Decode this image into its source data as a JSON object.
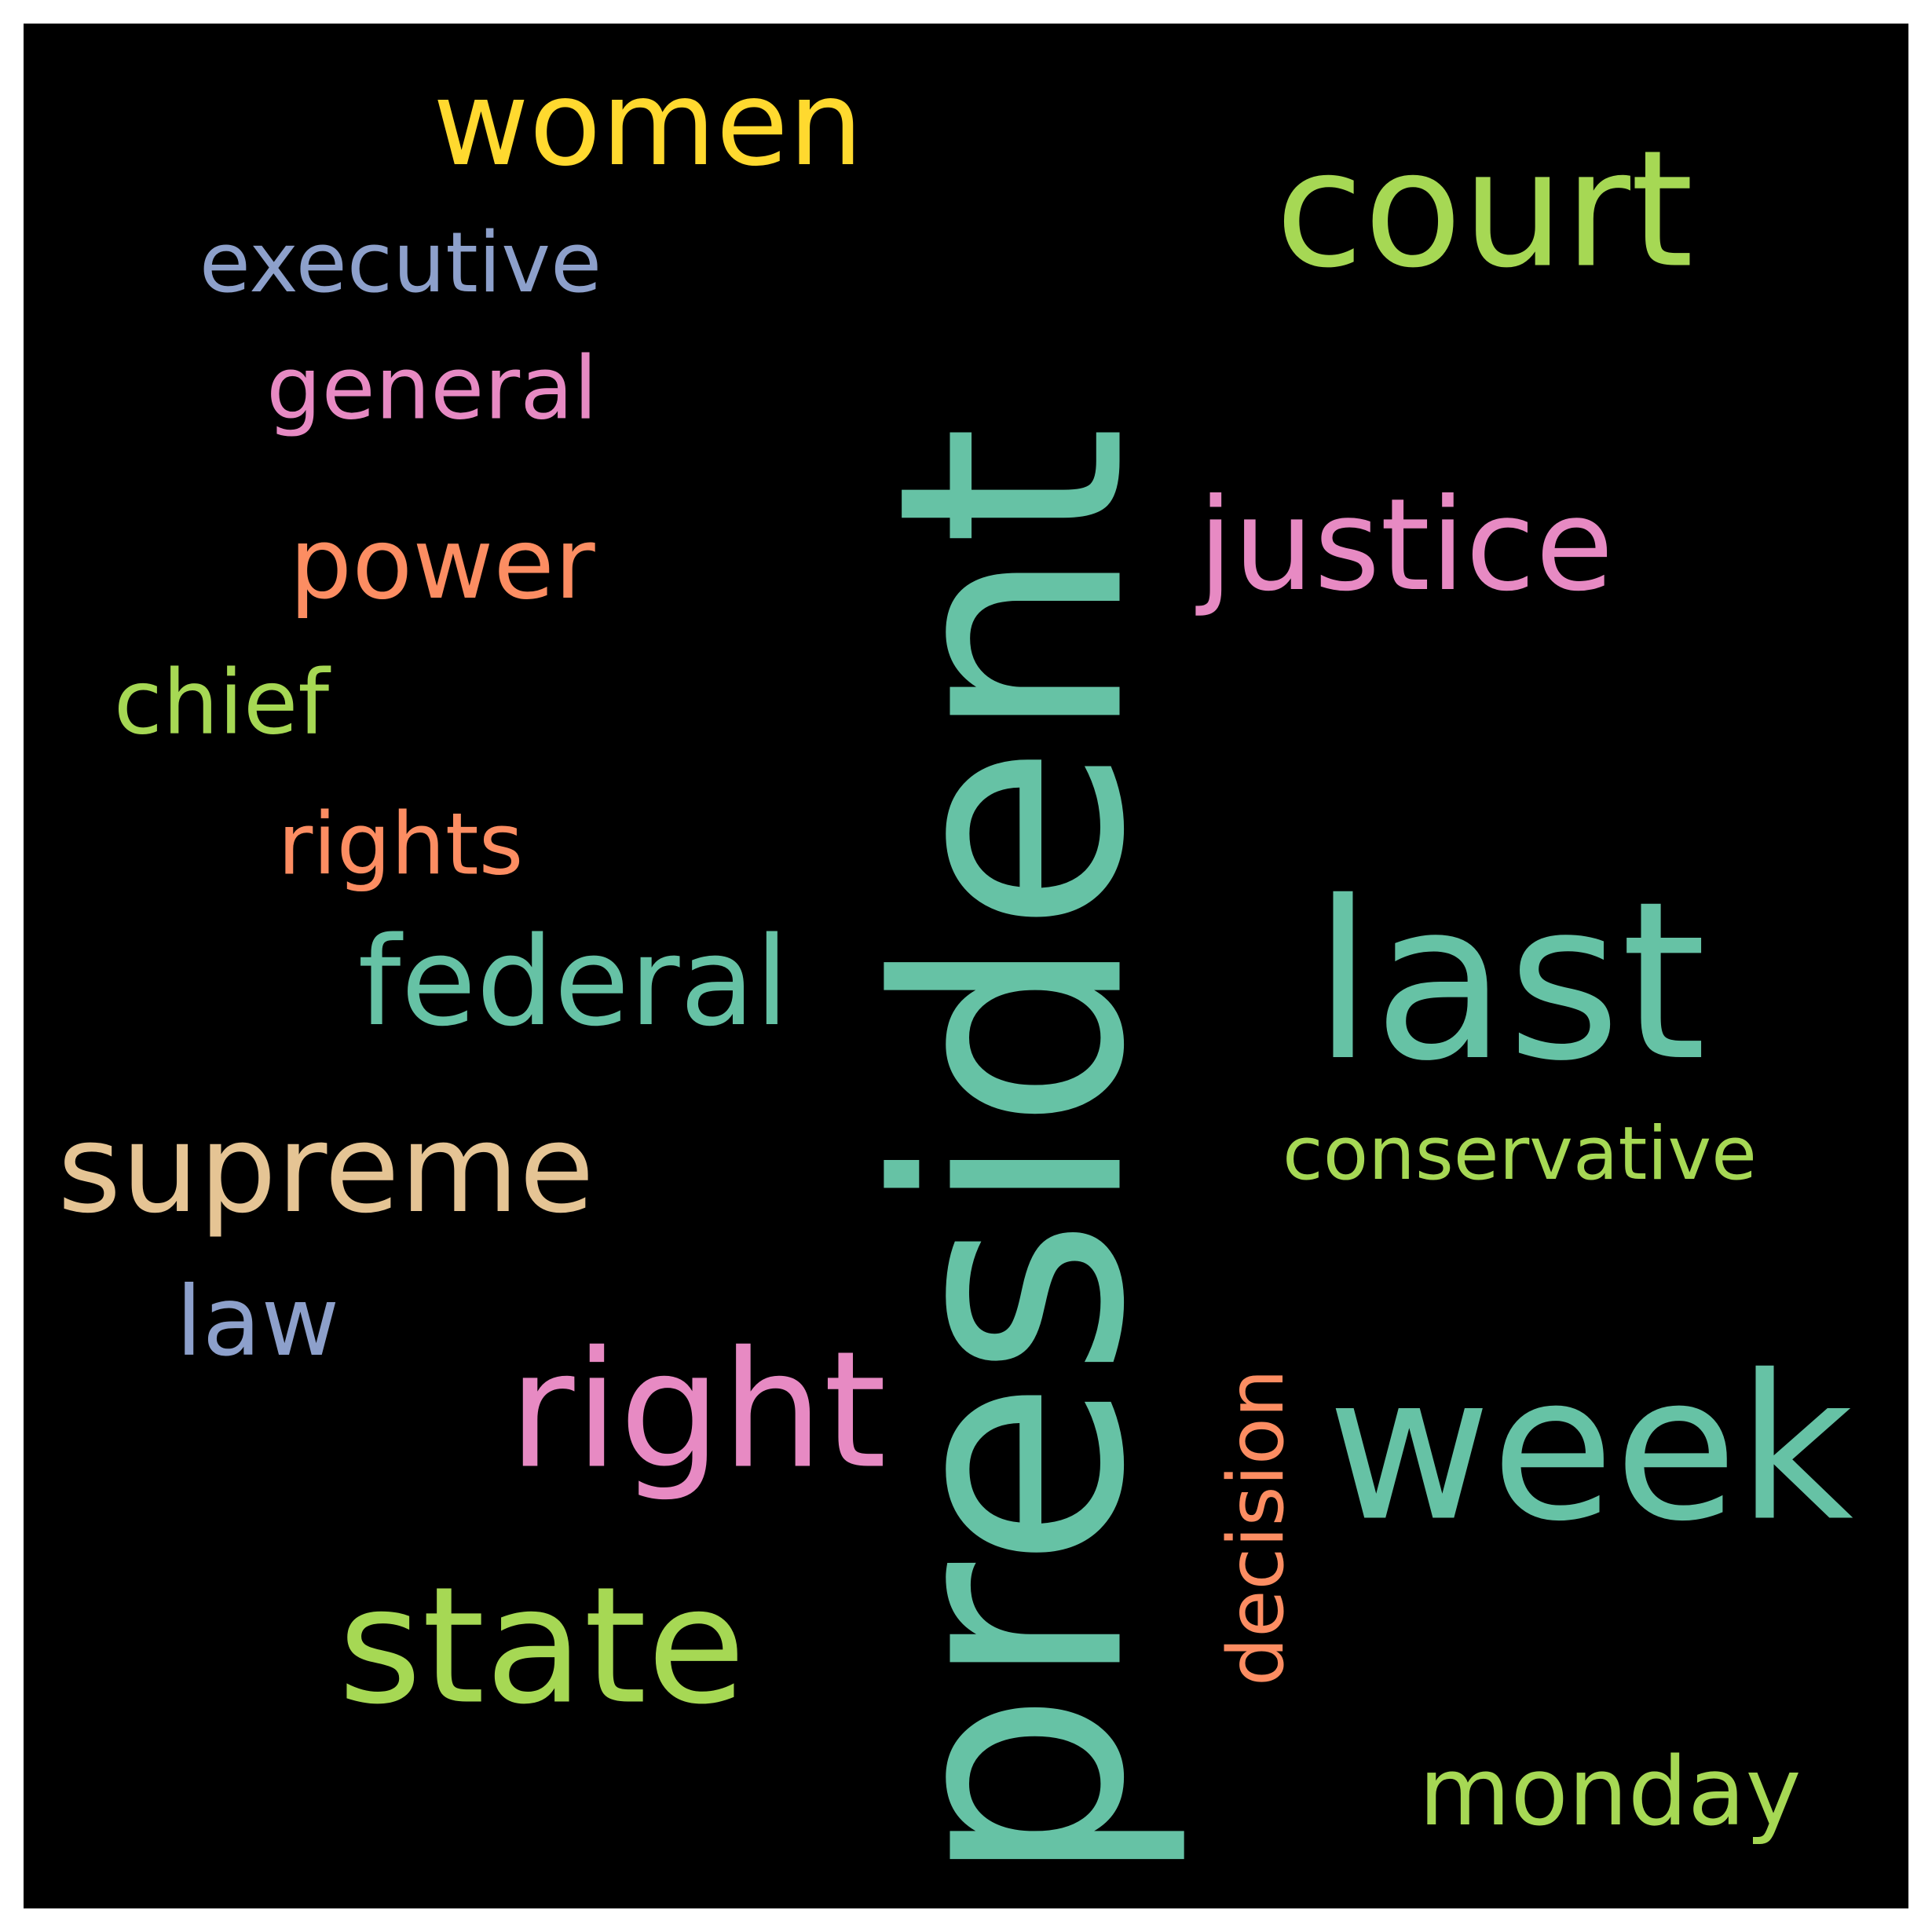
{
  "background": "#000000",
  "frame": "#ffffff",
  "words": [
    {
      "id": "president",
      "text": "president",
      "color": "#66c2a5"
    },
    {
      "id": "last",
      "text": "last",
      "color": "#66c2a5"
    },
    {
      "id": "week",
      "text": "week",
      "color": "#66c2a5"
    },
    {
      "id": "court",
      "text": "court",
      "color": "#a6d854"
    },
    {
      "id": "state",
      "text": "state",
      "color": "#a6d854"
    },
    {
      "id": "right",
      "text": "right",
      "color": "#e78ac3"
    },
    {
      "id": "justice",
      "text": "justice",
      "color": "#e78ac3"
    },
    {
      "id": "women",
      "text": "women",
      "color": "#ffd92f"
    },
    {
      "id": "supreme",
      "text": "supreme",
      "color": "#e5c494"
    },
    {
      "id": "federal",
      "text": "federal",
      "color": "#66c2a5"
    },
    {
      "id": "power",
      "text": "power",
      "color": "#fc8d62"
    },
    {
      "id": "executive",
      "text": "executive",
      "color": "#8da0cb"
    },
    {
      "id": "general",
      "text": "general",
      "color": "#e78ac3"
    },
    {
      "id": "chief",
      "text": "chief",
      "color": "#a6d854"
    },
    {
      "id": "rights",
      "text": "rights",
      "color": "#fc8d62"
    },
    {
      "id": "law",
      "text": "law",
      "color": "#8da0cb"
    },
    {
      "id": "conservative",
      "text": "conservative",
      "color": "#a6d854"
    },
    {
      "id": "decision",
      "text": "decision",
      "color": "#fc8d62"
    },
    {
      "id": "monday",
      "text": "monday",
      "color": "#a6d854"
    }
  ]
}
